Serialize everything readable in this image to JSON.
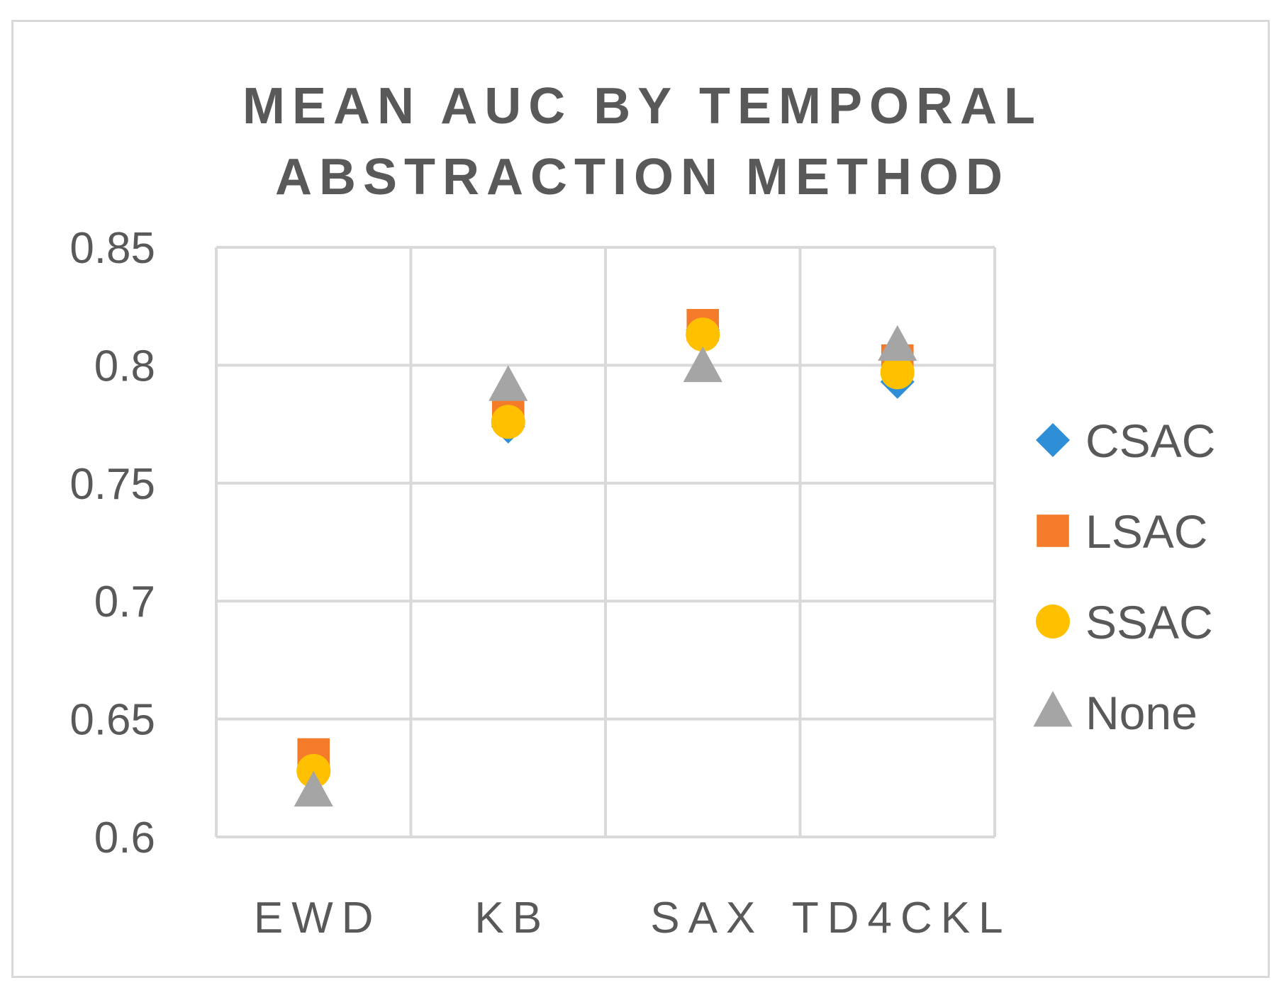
{
  "chart_data": {
    "type": "scatter",
    "title_lines": [
      "MEAN AUC BY TEMPORAL",
      "ABSTRACTION METHOD"
    ],
    "categories": [
      "EWD",
      "KB",
      "SAX",
      "TD4CKL"
    ],
    "ylim": [
      0.6,
      0.85
    ],
    "yticks": [
      "0.6",
      "0.65",
      "0.7",
      "0.75",
      "0.8",
      "0.85"
    ],
    "grid": true,
    "legend_position": "right",
    "series": [
      {
        "name": "CSAC",
        "marker": "diamond",
        "color": "#2e8fd8",
        "values": [
          0.629,
          0.774,
          0.815,
          0.793
        ]
      },
      {
        "name": "LSAC",
        "marker": "square",
        "color": "#f47b2a",
        "values": [
          0.635,
          0.781,
          0.817,
          0.802
        ]
      },
      {
        "name": "SSAC",
        "marker": "circle",
        "color": "#ffc000",
        "values": [
          0.628,
          0.776,
          0.813,
          0.797
        ]
      },
      {
        "name": "None",
        "marker": "triangle",
        "color": "#a5a5a5",
        "values": [
          0.619,
          0.791,
          0.799,
          0.808
        ]
      }
    ]
  }
}
